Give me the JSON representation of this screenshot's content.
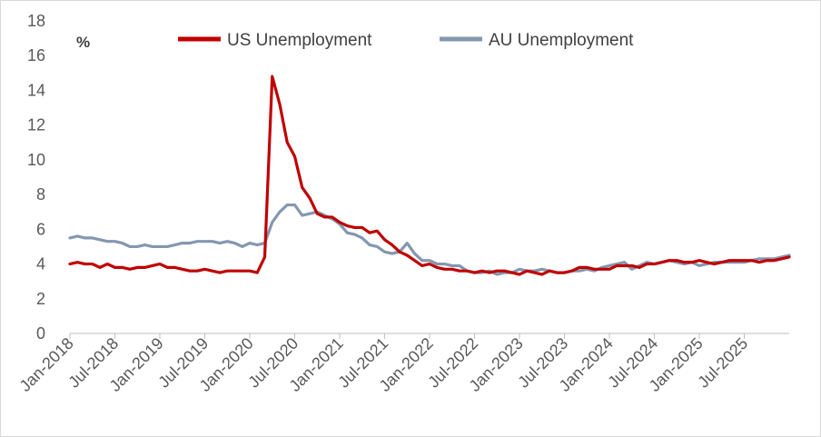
{
  "chart_data": {
    "type": "line",
    "title": "",
    "xlabel": "",
    "ylabel": "%",
    "ylim": [
      0,
      18
    ],
    "yticks": [
      0,
      2,
      4,
      6,
      8,
      10,
      12,
      14,
      16,
      18
    ],
    "grid": false,
    "legend_position": "top",
    "x_tick_labels": [
      "Jan-2018",
      "Jul-2018",
      "Jan-2019",
      "Jul-2019",
      "Jan-2020",
      "Jul-2020",
      "Jan-2021",
      "Jul-2021",
      "Jan-2022",
      "Jul-2022",
      "Jan-2023",
      "Jul-2023",
      "Jan-2024",
      "Jul-2024",
      "Jan-2025",
      "Jul-2025"
    ],
    "x_start": "Jan-2018",
    "x_end": "Oct-2025",
    "series": [
      {
        "name": "US Unemployment",
        "color": "#c00000",
        "values": [
          4.0,
          4.1,
          4.0,
          4.0,
          3.8,
          4.0,
          3.8,
          3.8,
          3.7,
          3.8,
          3.8,
          3.9,
          4.0,
          3.8,
          3.8,
          3.7,
          3.6,
          3.6,
          3.7,
          3.6,
          3.5,
          3.6,
          3.6,
          3.6,
          3.6,
          3.5,
          4.4,
          14.8,
          13.2,
          11.0,
          10.2,
          8.4,
          7.8,
          6.9,
          6.7,
          6.7,
          6.4,
          6.2,
          6.1,
          6.1,
          5.8,
          5.9,
          5.4,
          5.1,
          4.7,
          4.5,
          4.2,
          3.9,
          4.0,
          3.8,
          3.7,
          3.7,
          3.6,
          3.6,
          3.5,
          3.6,
          3.5,
          3.6,
          3.6,
          3.5,
          3.4,
          3.6,
          3.5,
          3.4,
          3.6,
          3.5,
          3.5,
          3.6,
          3.8,
          3.8,
          3.7,
          3.7,
          3.7,
          3.9,
          3.9,
          3.9,
          3.8,
          4.0,
          4.0,
          4.1,
          4.2,
          4.2,
          4.1,
          4.1,
          4.2,
          4.1,
          4.0,
          4.1,
          4.2,
          4.2,
          4.2,
          4.2,
          4.1,
          4.2,
          4.2,
          4.3,
          4.4
        ]
      },
      {
        "name": "AU Unemployment",
        "color": "#8497b0",
        "values": [
          5.5,
          5.6,
          5.5,
          5.5,
          5.4,
          5.3,
          5.3,
          5.2,
          5.0,
          5.0,
          5.1,
          5.0,
          5.0,
          5.0,
          5.1,
          5.2,
          5.2,
          5.3,
          5.3,
          5.3,
          5.2,
          5.3,
          5.2,
          5.0,
          5.2,
          5.1,
          5.2,
          6.4,
          7.0,
          7.4,
          7.4,
          6.8,
          6.9,
          7.0,
          6.8,
          6.6,
          6.3,
          5.8,
          5.7,
          5.5,
          5.1,
          5.0,
          4.7,
          4.6,
          4.7,
          5.2,
          4.6,
          4.2,
          4.2,
          4.0,
          4.0,
          3.9,
          3.9,
          3.6,
          3.5,
          3.5,
          3.6,
          3.4,
          3.5,
          3.5,
          3.7,
          3.6,
          3.6,
          3.7,
          3.6,
          3.5,
          3.5,
          3.6,
          3.6,
          3.7,
          3.6,
          3.8,
          3.9,
          4.0,
          4.1,
          3.7,
          3.9,
          4.1,
          4.0,
          4.1,
          4.2,
          4.1,
          4.0,
          4.1,
          3.9,
          4.0,
          4.1,
          4.1,
          4.1,
          4.1,
          4.1,
          4.2,
          4.3,
          4.3,
          4.3,
          4.4,
          4.5
        ]
      }
    ]
  }
}
